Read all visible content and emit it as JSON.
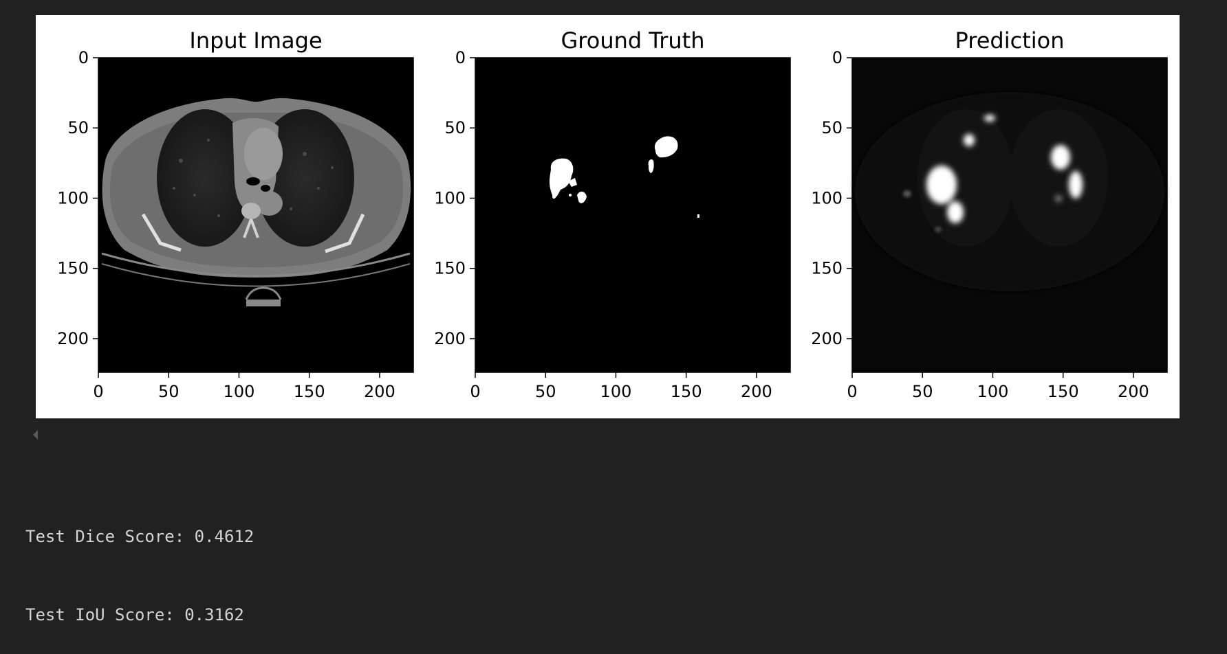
{
  "figure": {
    "chart_data": [
      {
        "type": "image",
        "title": "Input Image",
        "content": "axial chest CT slice (grayscale)",
        "xlim": [
          0,
          224
        ],
        "ylim": [
          224,
          0
        ],
        "xticks": [
          "0",
          "50",
          "100",
          "150",
          "200"
        ],
        "yticks": [
          "0",
          "50",
          "100",
          "150",
          "200"
        ]
      },
      {
        "type": "image",
        "title": "Ground Truth",
        "content": "binary segmentation mask (white lesions on black)",
        "xlim": [
          0,
          224
        ],
        "ylim": [
          224,
          0
        ],
        "xticks": [
          "0",
          "50",
          "100",
          "150",
          "200"
        ],
        "yticks": [
          "0",
          "50",
          "100",
          "150",
          "200"
        ]
      },
      {
        "type": "image",
        "title": "Prediction",
        "content": "predicted probability map (grayscale)",
        "xlim": [
          0,
          224
        ],
        "ylim": [
          224,
          0
        ],
        "xticks": [
          "0",
          "50",
          "100",
          "150",
          "200"
        ],
        "yticks": [
          "0",
          "50",
          "100",
          "150",
          "200"
        ]
      }
    ]
  },
  "output": {
    "lines": [
      "Test Dice Score: 0.4612",
      "Test IoU Score: 0.3162"
    ]
  }
}
